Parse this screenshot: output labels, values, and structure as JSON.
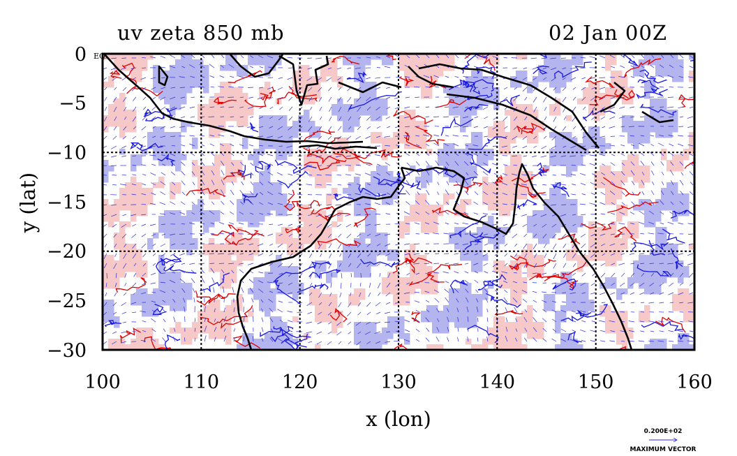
{
  "title_left": "uv zeta 850 mb",
  "title_right": "02 Jan 00Z",
  "axes": {
    "xlabel": "x (lon)",
    "ylabel": "y (lat)",
    "xlim": [
      100,
      160
    ],
    "ylim": [
      -30,
      0
    ],
    "x_ticks": [
      100,
      110,
      120,
      130,
      140,
      150,
      160
    ],
    "x_tick_labels": [
      "100",
      "110",
      "120",
      "130",
      "140",
      "150",
      "160"
    ],
    "y_ticks": [
      0,
      -5,
      -10,
      -15,
      -20,
      -25,
      -30
    ],
    "y_tick_labels": [
      "0",
      "−5",
      "−10",
      "−15",
      "−20",
      "−25",
      "−30"
    ],
    "eq_label": "EQ",
    "grid": true,
    "grid_lines_x": [
      110,
      120,
      130,
      140,
      150
    ],
    "grid_lines_y": [
      -10,
      -20
    ]
  },
  "legend": {
    "vector_value": "0.200E+02",
    "vector_label": "MAXIMUM VECTOR"
  },
  "colors": {
    "positive_fill": "#f7c8c8",
    "positive_contour": "#e00000",
    "negative_fill": "#b4b4ee",
    "negative_contour": "#1818e0",
    "coast": "#000000",
    "vectors": "#2a2ae0"
  }
}
